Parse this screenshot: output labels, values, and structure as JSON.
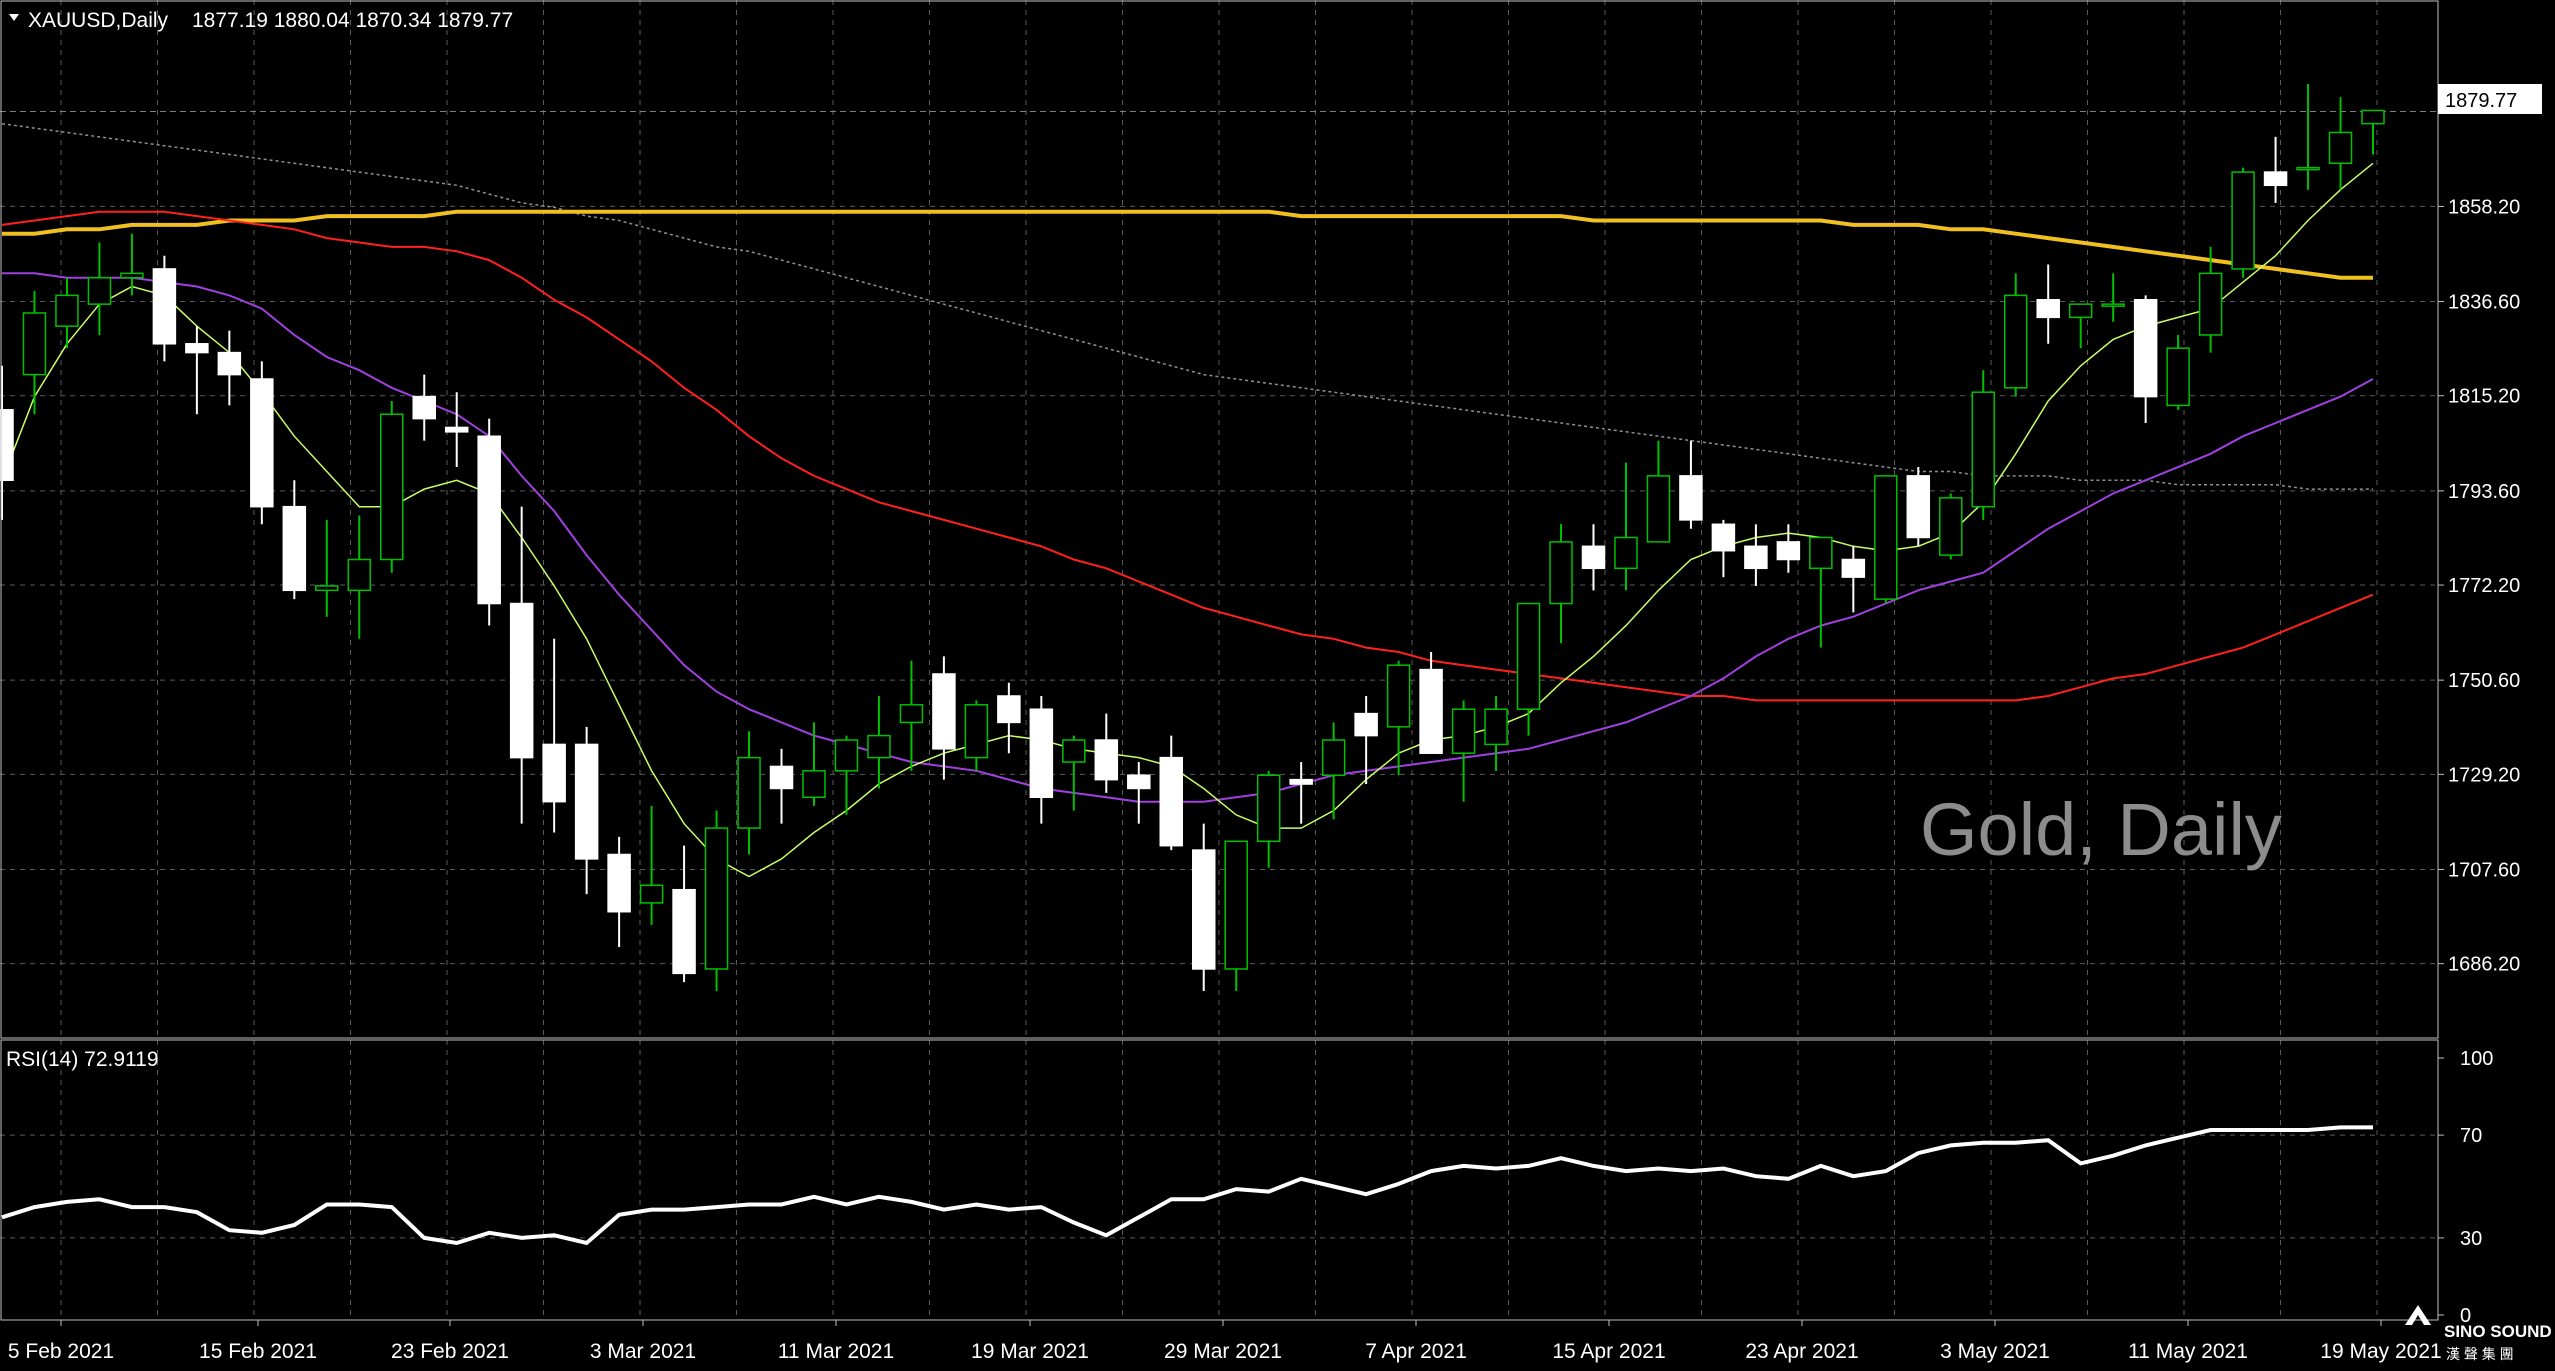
{
  "header": {
    "title": "XAUUSD,Daily",
    "ohlc": "1877.19 1880.04 1870.34 1879.77"
  },
  "watermark": "Gold, Daily",
  "current_price": "1879.77",
  "rsi_header": "RSI(14) 72.9119",
  "logo": {
    "text": "SINO SOUND",
    "sub": "漢 聲 集 團"
  },
  "colors": {
    "background": "#000000",
    "grid": "#5a5a5a",
    "frame": "#c0c0c0",
    "text": "#ffffff",
    "candle_up_body": "#000000",
    "candle_up_wick": "#00c000",
    "candle_down_body": "#ffffff",
    "ma_fast": "#c8ff66",
    "ma_purple": "#a040e0",
    "ma_red": "#ff2020",
    "ma_gold": "#f0c020",
    "ma_gray": "#909090",
    "rsi_line": "#ffffff",
    "watermark": "#8c8c8c"
  },
  "chart_data": [
    {
      "type": "candlestick",
      "title": "XAUUSD,Daily",
      "y_ticks": [
        "1879.77",
        "1858.20",
        "1836.60",
        "1815.20",
        "1793.60",
        "1772.20",
        "1750.60",
        "1729.20",
        "1707.60",
        "1686.20"
      ],
      "x_ticks": [
        "5 Feb 2021",
        "15 Feb 2021",
        "23 Feb 2021",
        "3 Mar 2021",
        "11 Mar 2021",
        "19 Mar 2021",
        "29 Mar 2021",
        "7 Apr 2021",
        "15 Apr 2021",
        "23 Apr 2021",
        "3 May 2021",
        "11 May 2021",
        "19 May 2021"
      ],
      "ylim": [
        1670,
        1896
      ],
      "grid": true,
      "ohlc": [
        [
          1812,
          1822,
          1787,
          1796
        ],
        [
          1820,
          1839,
          1811,
          1834
        ],
        [
          1831,
          1842,
          1826,
          1838
        ],
        [
          1836,
          1850,
          1829,
          1842
        ],
        [
          1842,
          1852,
          1838,
          1843
        ],
        [
          1844,
          1847,
          1823,
          1827
        ],
        [
          1827,
          1831,
          1811,
          1825
        ],
        [
          1825,
          1830,
          1813,
          1820
        ],
        [
          1819,
          1823,
          1786,
          1790
        ],
        [
          1790,
          1796,
          1769,
          1771
        ],
        [
          1771,
          1787,
          1765,
          1772
        ],
        [
          1771,
          1788,
          1760,
          1778
        ],
        [
          1778,
          1814,
          1775,
          1811
        ],
        [
          1815,
          1820,
          1805,
          1810
        ],
        [
          1808,
          1816,
          1799,
          1807
        ],
        [
          1806,
          1810,
          1763,
          1768
        ],
        [
          1768,
          1790,
          1718,
          1733
        ],
        [
          1736,
          1760,
          1716,
          1723
        ],
        [
          1736,
          1740,
          1702,
          1710
        ],
        [
          1711,
          1715,
          1690,
          1698
        ],
        [
          1700,
          1722,
          1695,
          1704
        ],
        [
          1703,
          1713,
          1682,
          1684
        ],
        [
          1685,
          1721,
          1680,
          1717
        ],
        [
          1717,
          1739,
          1711,
          1733
        ],
        [
          1731,
          1735,
          1718,
          1726
        ],
        [
          1724,
          1741,
          1722,
          1730
        ],
        [
          1730,
          1738,
          1720,
          1737
        ],
        [
          1733,
          1747,
          1726,
          1738
        ],
        [
          1741,
          1755,
          1730,
          1745
        ],
        [
          1752,
          1756,
          1728,
          1735
        ],
        [
          1733,
          1746,
          1730,
          1745
        ],
        [
          1747,
          1750,
          1734,
          1741
        ],
        [
          1744,
          1747,
          1718,
          1724
        ],
        [
          1732,
          1738,
          1721,
          1737
        ],
        [
          1737,
          1743,
          1725,
          1728
        ],
        [
          1729,
          1732,
          1718,
          1726
        ],
        [
          1733,
          1738,
          1712,
          1713
        ],
        [
          1712,
          1718,
          1680,
          1685
        ],
        [
          1685,
          1713,
          1680,
          1714
        ],
        [
          1714,
          1730,
          1708,
          1729
        ],
        [
          1728,
          1732,
          1718,
          1727
        ],
        [
          1729,
          1741,
          1719,
          1737
        ],
        [
          1743,
          1747,
          1727,
          1738
        ],
        [
          1740,
          1755,
          1729,
          1754
        ],
        [
          1753,
          1757,
          1735,
          1734
        ],
        [
          1734,
          1746,
          1723,
          1744
        ],
        [
          1736,
          1747,
          1730,
          1744
        ],
        [
          1744,
          1768,
          1738,
          1768
        ],
        [
          1768,
          1786,
          1759,
          1782
        ],
        [
          1781,
          1786,
          1771,
          1776
        ],
        [
          1776,
          1800,
          1771,
          1783
        ],
        [
          1782,
          1805,
          1782,
          1797
        ],
        [
          1797,
          1805,
          1785,
          1787
        ],
        [
          1786,
          1787,
          1774,
          1780
        ],
        [
          1781,
          1786,
          1772,
          1776
        ],
        [
          1782,
          1786,
          1775,
          1778
        ],
        [
          1776,
          1782,
          1758,
          1783
        ],
        [
          1778,
          1781,
          1766,
          1774
        ],
        [
          1769,
          1797,
          1768,
          1797
        ],
        [
          1797,
          1799,
          1781,
          1783
        ],
        [
          1779,
          1793,
          1778,
          1792
        ],
        [
          1790,
          1821,
          1787,
          1816
        ],
        [
          1817,
          1843,
          1815,
          1838
        ],
        [
          1837,
          1845,
          1827,
          1833
        ],
        [
          1833,
          1836,
          1826,
          1836
        ],
        [
          1836,
          1843,
          1832,
          1836
        ],
        [
          1837,
          1838,
          1809,
          1815
        ],
        [
          1813,
          1829,
          1812,
          1826
        ],
        [
          1829,
          1849,
          1825,
          1843
        ],
        [
          1844,
          1867,
          1842,
          1866
        ],
        [
          1866,
          1874,
          1859,
          1863
        ],
        [
          1867,
          1886,
          1862,
          1867
        ],
        [
          1868,
          1883,
          1862,
          1875
        ],
        [
          1877,
          1880,
          1870,
          1880
        ]
      ],
      "ma_fast": [
        1796,
        1815,
        1827,
        1836,
        1840,
        1838,
        1831,
        1825,
        1816,
        1806,
        1798,
        1790,
        1790,
        1794,
        1796,
        1793,
        1783,
        1772,
        1760,
        1745,
        1730,
        1718,
        1710,
        1706,
        1710,
        1716,
        1721,
        1727,
        1731,
        1734,
        1736,
        1738,
        1737,
        1735,
        1734,
        1733,
        1731,
        1726,
        1720,
        1717,
        1717,
        1721,
        1728,
        1734,
        1737,
        1738,
        1740,
        1743,
        1750,
        1756,
        1763,
        1771,
        1778,
        1781,
        1783,
        1784,
        1783,
        1781,
        1780,
        1781,
        1784,
        1791,
        1802,
        1814,
        1822,
        1828,
        1831,
        1833,
        1835,
        1841,
        1847,
        1855,
        1862,
        1868
      ],
      "ma_purple": [
        1843,
        1843,
        1842,
        1842,
        1842,
        1841,
        1840,
        1838,
        1835,
        1829,
        1824,
        1821,
        1817,
        1814,
        1811,
        1806,
        1797,
        1789,
        1779,
        1770,
        1762,
        1754,
        1748,
        1744,
        1741,
        1738,
        1736,
        1734,
        1732,
        1731,
        1730,
        1728,
        1726,
        1725,
        1724,
        1723,
        1723,
        1723,
        1724,
        1725,
        1727,
        1729,
        1730,
        1731,
        1732,
        1733,
        1734,
        1735,
        1737,
        1739,
        1741,
        1744,
        1747,
        1751,
        1756,
        1760,
        1763,
        1765,
        1768,
        1771,
        1773,
        1775,
        1780,
        1785,
        1789,
        1793,
        1796,
        1799,
        1802,
        1806,
        1809,
        1812,
        1815,
        1819
      ],
      "ma_red": [
        1854,
        1855,
        1856,
        1857,
        1857,
        1857,
        1856,
        1855,
        1854,
        1853,
        1851,
        1850,
        1849,
        1849,
        1848,
        1846,
        1842,
        1837,
        1833,
        1828,
        1823,
        1817,
        1812,
        1806,
        1801,
        1797,
        1794,
        1791,
        1789,
        1787,
        1785,
        1783,
        1781,
        1778,
        1776,
        1773,
        1770,
        1767,
        1765,
        1763,
        1761,
        1760,
        1758,
        1757,
        1755,
        1754,
        1753,
        1752,
        1751,
        1750,
        1749,
        1748,
        1747,
        1747,
        1746,
        1746,
        1746,
        1746,
        1746,
        1746,
        1746,
        1746,
        1746,
        1747,
        1749,
        1751,
        1752,
        1754,
        1756,
        1758,
        1761,
        1764,
        1767,
        1770
      ],
      "ma_gold": [
        1852,
        1852,
        1853,
        1853,
        1854,
        1854,
        1854,
        1855,
        1855,
        1855,
        1856,
        1856,
        1856,
        1856,
        1857,
        1857,
        1857,
        1857,
        1857,
        1857,
        1857,
        1857,
        1857,
        1857,
        1857,
        1857,
        1857,
        1857,
        1857,
        1857,
        1857,
        1857,
        1857,
        1857,
        1857,
        1857,
        1857,
        1857,
        1857,
        1857,
        1856,
        1856,
        1856,
        1856,
        1856,
        1856,
        1856,
        1856,
        1856,
        1855,
        1855,
        1855,
        1855,
        1855,
        1855,
        1855,
        1855,
        1854,
        1854,
        1854,
        1853,
        1853,
        1852,
        1851,
        1850,
        1849,
        1848,
        1847,
        1846,
        1845,
        1844,
        1843,
        1842,
        1842
      ],
      "ma_gray": [
        1877,
        1876,
        1875,
        1874,
        1873,
        1872,
        1871,
        1870,
        1869,
        1868,
        1867,
        1866,
        1865,
        1864,
        1863,
        1861,
        1859,
        1858,
        1856,
        1855,
        1853,
        1851,
        1849,
        1848,
        1846,
        1844,
        1842,
        1840,
        1838,
        1836,
        1834,
        1832,
        1830,
        1828,
        1826,
        1824,
        1822,
        1820,
        1819,
        1818,
        1817,
        1816,
        1815,
        1814,
        1813,
        1812,
        1811,
        1810,
        1809,
        1808,
        1807,
        1806,
        1805,
        1804,
        1803,
        1802,
        1801,
        1800,
        1799,
        1798,
        1798,
        1797,
        1797,
        1797,
        1796,
        1796,
        1796,
        1795,
        1795,
        1795,
        1795,
        1794,
        1794,
        1794
      ]
    },
    {
      "type": "line",
      "title": "RSI(14) 72.9119",
      "y_ticks": [
        "100",
        "70",
        "30",
        "0"
      ],
      "ylim": [
        0,
        100
      ],
      "values": [
        38,
        42,
        44,
        45,
        42,
        42,
        40,
        33,
        32,
        35,
        43,
        43,
        42,
        30,
        28,
        32,
        30,
        31,
        28,
        39,
        41,
        41,
        42,
        43,
        43,
        46,
        43,
        46,
        44,
        41,
        43,
        41,
        42,
        36,
        31,
        38,
        45,
        45,
        49,
        48,
        53,
        50,
        47,
        51,
        56,
        58,
        57,
        58,
        61,
        58,
        56,
        57,
        56,
        57,
        54,
        53,
        58,
        54,
        56,
        63,
        66,
        67,
        67,
        68,
        59,
        62,
        66,
        69,
        72,
        72,
        72,
        72,
        73,
        73
      ]
    }
  ]
}
